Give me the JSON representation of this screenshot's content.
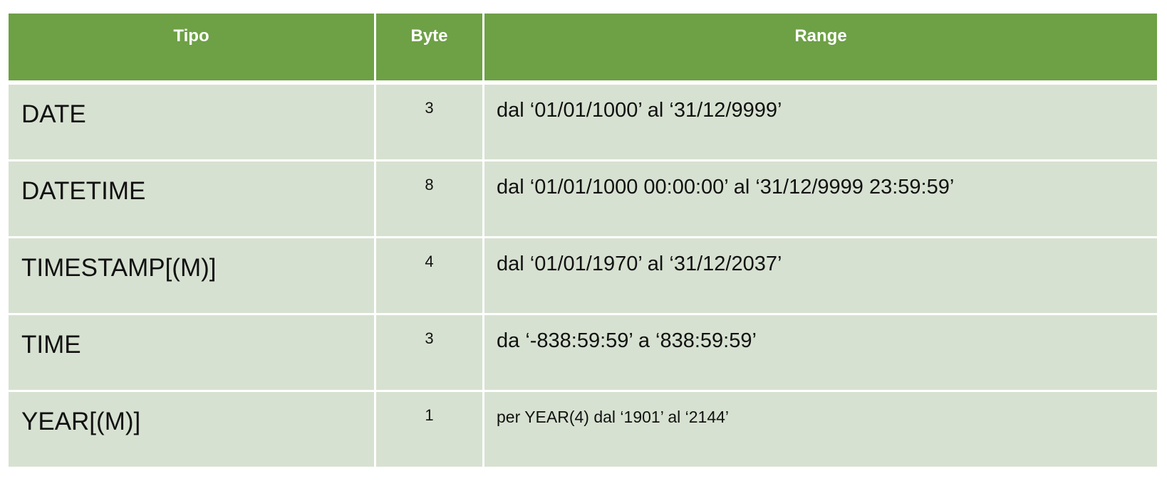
{
  "table": {
    "headers": {
      "tipo": "Tipo",
      "byte": "Byte",
      "range": "Range"
    },
    "rows": [
      {
        "tipo": "DATE",
        "byte": "3",
        "range": "dal ‘01/01/1000’ al ‘31/12/9999’"
      },
      {
        "tipo": "DATETIME",
        "byte": "8",
        "range": "dal ‘01/01/1000 00:00:00’ al ‘31/12/9999 23:59:59’"
      },
      {
        "tipo": "TIMESTAMP[(M)]",
        "byte": "4",
        "range": "dal ‘01/01/1970’ al ‘31/12/2037’"
      },
      {
        "tipo": "TIME",
        "byte": "3",
        "range": "da ‘-838:59:59’ a ‘838:59:59’"
      },
      {
        "tipo": "YEAR[(M)]",
        "byte": "1",
        "range": "per YEAR(4) dal ‘1901’ al ‘2144’"
      }
    ]
  },
  "colors": {
    "header_background": "#6ea046",
    "row_background": "#d7e1d1",
    "header_text": "#ffffff"
  }
}
